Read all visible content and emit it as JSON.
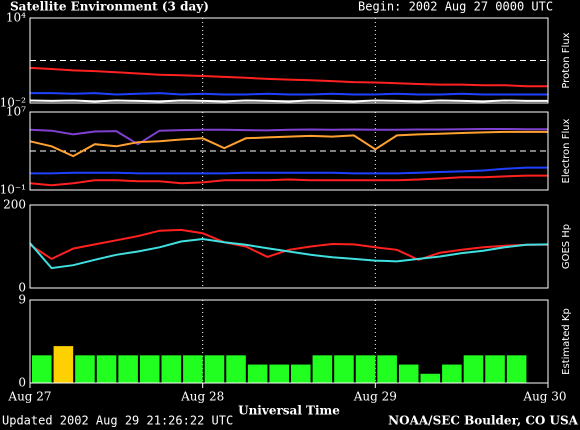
{
  "title": "Satellite Environment (3 day)",
  "begin": "Begin:  2002 Aug 27 0000 UTC",
  "xlabel": "Universal Time",
  "updated": "Updated 2002 Aug 29 21:26:22 UTC",
  "credit": "NOAA/SEC Boulder, CO USA",
  "xlim": [
    0,
    72
  ],
  "xticks": [
    {
      "value": 0,
      "label": "Aug 27"
    },
    {
      "value": 24,
      "label": "Aug 28"
    },
    {
      "value": 48,
      "label": "Aug 29"
    },
    {
      "value": 72,
      "label": "Aug 30"
    }
  ],
  "x": [
    0,
    3,
    6,
    9,
    12,
    15,
    18,
    21,
    24,
    27,
    30,
    33,
    36,
    39,
    42,
    45,
    48,
    51,
    54,
    57,
    60,
    63,
    66,
    69,
    72
  ],
  "chart_data": [
    {
      "type": "line",
      "ylabel": "Proton Flux",
      "log": true,
      "ylim": [
        0.01,
        10000
      ],
      "yticks": [
        {
          "value": 10000,
          "label": "10⁴"
        },
        {
          "value": 0.01,
          "label": "10⁻²"
        }
      ],
      "thresholds": [
        10
      ],
      "series": [
        {
          "color": "#ff2020",
          "values": [
            3,
            2.5,
            2,
            1.8,
            1.5,
            1.2,
            1,
            0.9,
            0.8,
            0.7,
            0.6,
            0.5,
            0.45,
            0.4,
            0.35,
            0.3,
            0.28,
            0.25,
            0.22,
            0.2,
            0.2,
            0.18,
            0.18,
            0.15,
            0.15
          ]
        },
        {
          "color": "#2040ff",
          "values": [
            0.05,
            0.05,
            0.045,
            0.05,
            0.04,
            0.045,
            0.05,
            0.04,
            0.045,
            0.04,
            0.04,
            0.045,
            0.04,
            0.04,
            0.045,
            0.04,
            0.04,
            0.045,
            0.04,
            0.04,
            0.045,
            0.04,
            0.04,
            0.04,
            0.04
          ]
        },
        {
          "color": "#ffffff",
          "values": [
            0.015,
            0.014,
            0.015,
            0.013,
            0.015,
            0.014,
            0.013,
            0.015,
            0.014,
            0.013,
            0.015,
            0.014,
            0.013,
            0.015,
            0.014,
            0.013,
            0.015,
            0.014,
            0.013,
            0.015,
            0.014,
            0.013,
            0.015,
            0.014,
            0.014
          ]
        }
      ]
    },
    {
      "type": "line",
      "ylabel": "Electron Flux",
      "log": true,
      "ylim": [
        0.1,
        10000000
      ],
      "yticks": [
        {
          "value": 10000000,
          "label": "10⁷"
        },
        {
          "value": 0.1,
          "label": "10⁻¹"
        }
      ],
      "thresholds": [
        1000
      ],
      "series": [
        {
          "color": "#8040d0",
          "values": [
            150000,
            120000,
            50000,
            100000,
            110000,
            5000,
            120000,
            140000,
            150000,
            150000,
            140000,
            130000,
            150000,
            160000,
            150000,
            160000,
            150000,
            150000,
            160000,
            160000,
            170000,
            180000,
            180000,
            170000,
            170000
          ]
        },
        {
          "color": "#ffa030",
          "values": [
            10000,
            3000,
            300,
            5000,
            3000,
            8000,
            10000,
            15000,
            20000,
            2000,
            20000,
            25000,
            30000,
            35000,
            30000,
            40000,
            1500,
            40000,
            50000,
            60000,
            70000,
            80000,
            90000,
            90000,
            90000
          ]
        },
        {
          "color": "#2040ff",
          "values": [
            5,
            5,
            6,
            6,
            6,
            5,
            5,
            5,
            5,
            5,
            6,
            6,
            6,
            6,
            6,
            5,
            5,
            5,
            6,
            7,
            8,
            10,
            15,
            20,
            20
          ]
        },
        {
          "color": "#ff2020",
          "values": [
            0.5,
            0.3,
            0.5,
            1,
            1,
            0.8,
            0.8,
            0.5,
            0.6,
            1,
            1,
            1,
            1.2,
            1,
            1,
            1,
            1,
            1,
            1.2,
            1.5,
            2,
            2,
            2.5,
            3,
            3
          ]
        }
      ]
    },
    {
      "type": "line",
      "ylabel": "GOES Hp",
      "log": false,
      "ylim": [
        0,
        200
      ],
      "yticks": [
        200,
        0
      ],
      "series": [
        {
          "color": "#ff2020",
          "values": [
            104,
            70,
            95,
            105,
            115,
            125,
            138,
            140,
            132,
            110,
            100,
            75,
            92,
            100,
            106,
            105,
            98,
            92,
            68,
            85,
            92,
            98,
            102,
            104,
            104
          ]
        },
        {
          "color": "#40e0e0",
          "values": [
            108,
            48,
            55,
            68,
            80,
            88,
            98,
            112,
            118,
            110,
            104,
            96,
            88,
            80,
            74,
            70,
            66,
            64,
            70,
            76,
            84,
            90,
            98,
            104,
            105
          ]
        }
      ]
    },
    {
      "type": "bar",
      "ylabel": "Estimated Kp",
      "log": false,
      "ylim": [
        0,
        9
      ],
      "yticks": [
        9,
        0
      ],
      "barwidth": 3,
      "x": [
        0,
        3,
        6,
        9,
        12,
        15,
        18,
        21,
        24,
        27,
        30,
        33,
        36,
        39,
        42,
        45,
        48,
        51,
        54,
        57,
        60,
        63,
        66,
        69
      ],
      "values": [
        3,
        4,
        3,
        3,
        3,
        3,
        3,
        3,
        3,
        3,
        2,
        2,
        2,
        3,
        3,
        3,
        3,
        2,
        1,
        2,
        3,
        3,
        3,
        null
      ],
      "colors": [
        "#20ff20",
        "#ffd000",
        "#20ff20",
        "#20ff20",
        "#20ff20",
        "#20ff20",
        "#20ff20",
        "#20ff20",
        "#20ff20",
        "#20ff20",
        "#20ff20",
        "#20ff20",
        "#20ff20",
        "#20ff20",
        "#20ff20",
        "#20ff20",
        "#20ff20",
        "#20ff20",
        "#20ff20",
        "#20ff20",
        "#20ff20",
        "#20ff20",
        "#20ff20",
        "#20ff20"
      ]
    }
  ]
}
